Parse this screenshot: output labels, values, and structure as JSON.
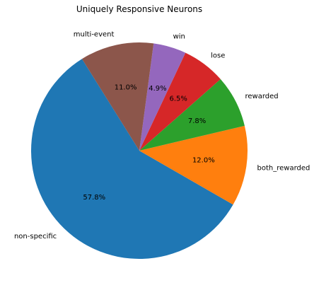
{
  "chart_data": {
    "type": "pie",
    "title": "Uniquely Responsive Neurons",
    "categories": [
      "non-specific",
      "both_rewarded",
      "rewarded",
      "lose",
      "win",
      "multi-event"
    ],
    "values": [
      57.8,
      12.0,
      7.8,
      6.5,
      4.9,
      11.0
    ],
    "value_labels": [
      "57.8%",
      "12.0%",
      "7.8%",
      "6.5%",
      "4.9%",
      "11.0%"
    ],
    "colors": [
      "#1f77b4",
      "#ff7f0e",
      "#2ca02c",
      "#d62728",
      "#9467bd",
      "#8c564b"
    ],
    "start_angle_deg": 122,
    "direction": "counterclockwise",
    "legend": "none"
  }
}
